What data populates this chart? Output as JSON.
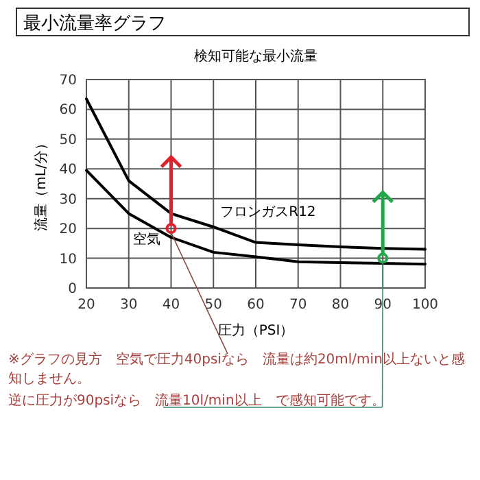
{
  "chart_data": {
    "type": "line",
    "title": "最小流量率グラフ",
    "subtitle": "検知可能な最小流量",
    "xlabel": "圧力（PSI）",
    "ylabel": "流量（mL/分）",
    "x": [
      20,
      30,
      40,
      50,
      60,
      70,
      80,
      90,
      100
    ],
    "series": [
      {
        "name": "フロンガスR12",
        "color": "#000000",
        "values": [
          63.5,
          36,
          25,
          20.5,
          15.3,
          14.5,
          13.8,
          13.3,
          13
        ]
      },
      {
        "name": "空気",
        "color": "#000000",
        "values": [
          39.5,
          25,
          17,
          12,
          10.5,
          8.8,
          8.5,
          8.3,
          8
        ]
      }
    ],
    "xlim": [
      20,
      100
    ],
    "ylim": [
      0,
      70
    ],
    "xticks": [
      20,
      30,
      40,
      50,
      60,
      70,
      80,
      90,
      100
    ],
    "yticks": [
      0,
      10,
      20,
      30,
      40,
      50,
      60,
      70
    ],
    "grid": true,
    "annotations": [
      {
        "text": "※グラフの見方　空気で圧力40psiなら　流量は約20ml/min以上ないと感知しません。",
        "x": 40,
        "y": 20
      },
      {
        "text": "逆に圧力が90psiなら　流量10l/min以上　で感知可能です。",
        "x": 90,
        "y": 10
      }
    ]
  }
}
